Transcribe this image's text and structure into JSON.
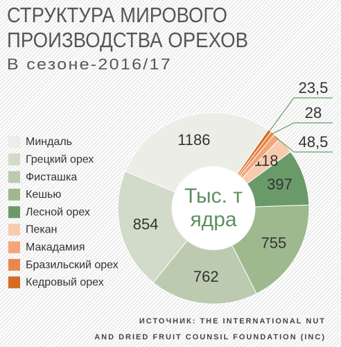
{
  "chart_data": {
    "type": "donut",
    "title": [
      "СТРУКТУРА МИРОВОГО",
      "ПРОИЗВОДСТВА ОРЕХОВ"
    ],
    "subtitle": "В сезоне-2016/17",
    "center_label": [
      "Тыс. т",
      "ядра"
    ],
    "categories": [
      "Миндаль",
      "Грецкий орех",
      "Фисташка",
      "Кешью",
      "Лесной орех",
      "Пекан",
      "Макадамия",
      "Бразильский орех",
      "Кедровый орех"
    ],
    "values": [
      1186,
      854,
      762,
      755,
      397,
      118,
      48.5,
      28,
      23.5
    ],
    "value_labels": [
      "1186",
      "854",
      "762",
      "755",
      "397",
      "118",
      "48,5",
      "28",
      "23,5"
    ],
    "colors": [
      "#ecede6",
      "#d2dbc9",
      "#bccab0",
      "#9db98d",
      "#6b9a6a",
      "#f6cbae",
      "#f2a679",
      "#e8884d",
      "#d96a22"
    ],
    "source": [
      "ИСТОЧНИК: THE INTERNATIONAL NUT",
      "AND DRIED FRUIT COUNSIL FOUNDATION (INC)"
    ]
  }
}
